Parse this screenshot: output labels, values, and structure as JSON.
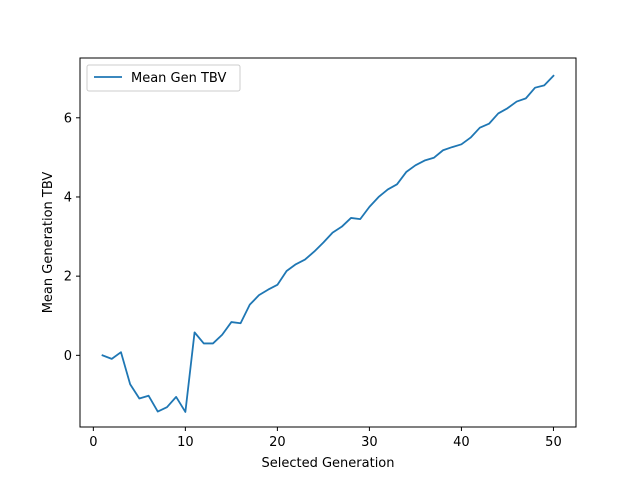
{
  "chart_data": {
    "type": "line",
    "title": "",
    "xlabel": "Selected Generation",
    "ylabel": "Mean Generation TBV",
    "xlim": [
      -1.45,
      52.45
    ],
    "ylim": [
      -1.81,
      7.51
    ],
    "xticks": [
      0,
      10,
      20,
      30,
      40,
      50
    ],
    "yticks": [
      0,
      2,
      4,
      6
    ],
    "grid": false,
    "legend_position": "top-left",
    "series": [
      {
        "name": "Mean Gen TBV",
        "color": "#1f77b4",
        "x": [
          1,
          2,
          3,
          4,
          5,
          6,
          7,
          8,
          9,
          10,
          11,
          12,
          13,
          14,
          15,
          16,
          17,
          18,
          19,
          20,
          21,
          22,
          23,
          24,
          25,
          26,
          27,
          28,
          29,
          30,
          31,
          32,
          33,
          34,
          35,
          36,
          37,
          38,
          39,
          40,
          41,
          42,
          43,
          44,
          45,
          46,
          47,
          48,
          49,
          50
        ],
        "y": [
          0.0,
          -0.09,
          0.08,
          -0.73,
          -1.09,
          -1.02,
          -1.42,
          -1.31,
          -1.05,
          -1.43,
          0.58,
          0.3,
          0.3,
          0.52,
          0.84,
          0.81,
          1.28,
          1.52,
          1.66,
          1.78,
          2.13,
          2.3,
          2.42,
          2.62,
          2.85,
          3.1,
          3.25,
          3.47,
          3.44,
          3.75,
          4.0,
          4.19,
          4.32,
          4.63,
          4.8,
          4.92,
          4.99,
          5.18,
          5.26,
          5.33,
          5.5,
          5.75,
          5.85,
          6.11,
          6.24,
          6.41,
          6.49,
          6.76,
          6.82,
          7.06
        ]
      }
    ]
  }
}
